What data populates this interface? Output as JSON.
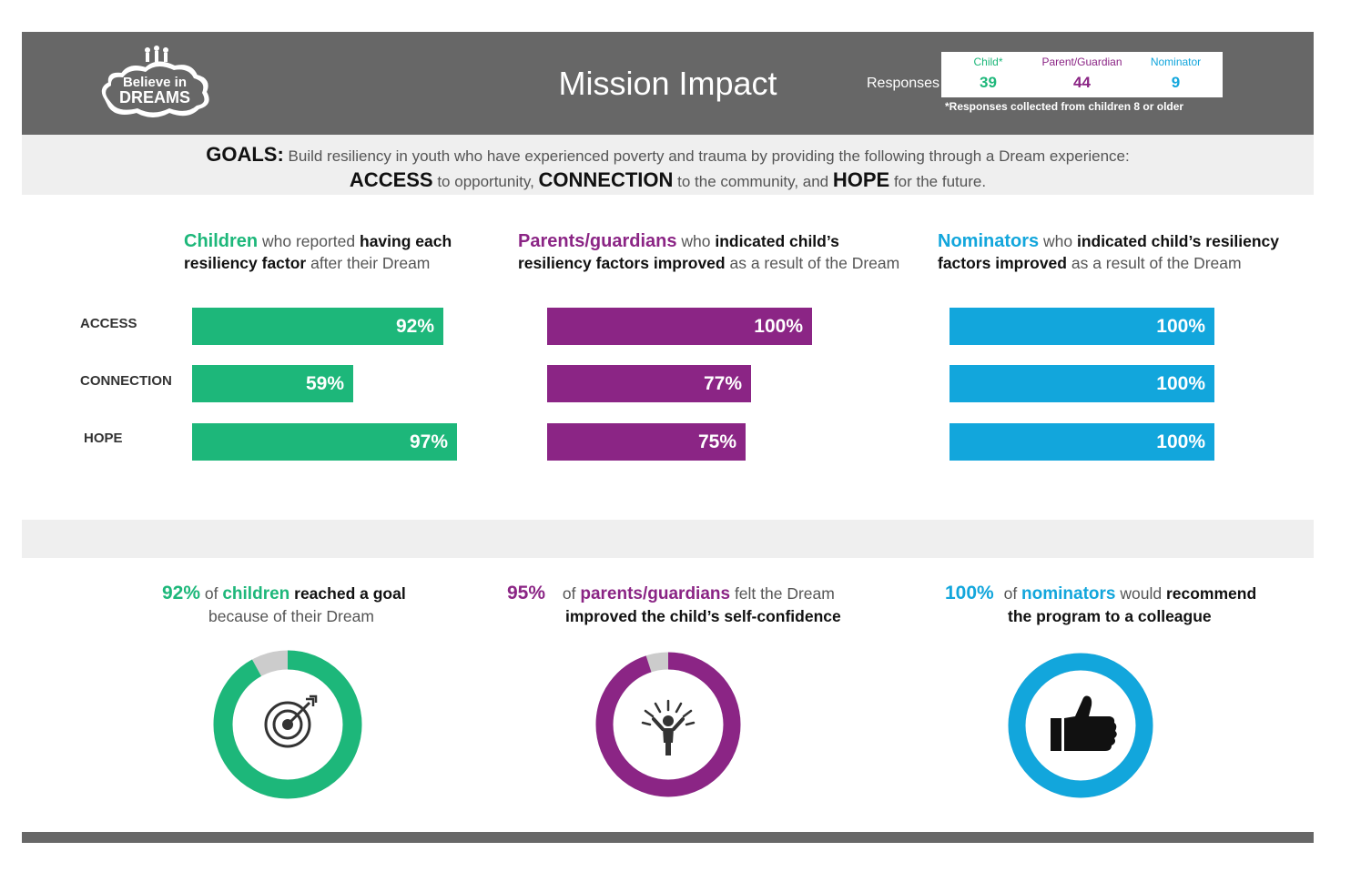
{
  "header": {
    "logo_text_top": "Believe in",
    "logo_text_bottom": "DREAMS",
    "title": "Mission Impact",
    "responses_label": "Responses",
    "responses": [
      {
        "label": "Child*",
        "value": "39",
        "color": "#1db77a"
      },
      {
        "label": "Parent/Guardian",
        "value": "44",
        "color": "#8b2585"
      },
      {
        "label": "Nominator",
        "value": "9",
        "color": "#12a6dc"
      }
    ],
    "note": "*Responses collected from children 8 or older"
  },
  "goals": {
    "prefix": "GOALS:",
    "line1": " Build resiliency in youth who have experienced poverty and trauma by providing the following through a Dream experience:",
    "access": "ACCESS",
    "access_rest": " to opportunity, ",
    "connection": "CONNECTION",
    "connection_rest": " to the community, and ",
    "hope": "HOPE",
    "hope_rest": " for the future."
  },
  "columns": {
    "children": {
      "a": "Children",
      "b": " who reported ",
      "c": "having each",
      "d": "resiliency factor",
      "e": " after their Dream"
    },
    "parents": {
      "a": "Parents/guardians",
      "b": " who ",
      "c": "indicated child’s",
      "d": "resiliency factors improved",
      "e": " as a result of the Dream"
    },
    "nominators": {
      "a": "Nominators",
      "b": " who ",
      "c": "indicated child’s resiliency",
      "d": "factors improved",
      "e": " as a result of the Dream"
    }
  },
  "colors": {
    "green": "#1db77a",
    "purple": "#8b2585",
    "blue": "#12a6dc",
    "gray": "#676767",
    "light": "#efefef"
  },
  "chart_data": [
    {
      "type": "bar",
      "orientation": "horizontal",
      "categories": [
        "ACCESS",
        "CONNECTION",
        "HOPE"
      ],
      "series": [
        {
          "name": "Children",
          "values": [
            92,
            59,
            97
          ],
          "labels": [
            "92%",
            "59%",
            "97%"
          ]
        }
      ],
      "xlim": [
        0,
        100
      ],
      "grid": false
    },
    {
      "type": "bar",
      "orientation": "horizontal",
      "categories": [
        "ACCESS",
        "CONNECTION",
        "HOPE"
      ],
      "series": [
        {
          "name": "Parents/guardians",
          "values": [
            100,
            77,
            75
          ],
          "labels": [
            "100%",
            "77%",
            "75%"
          ]
        }
      ],
      "xlim": [
        0,
        100
      ],
      "grid": false
    },
    {
      "type": "bar",
      "orientation": "horizontal",
      "categories": [
        "ACCESS",
        "CONNECTION",
        "HOPE"
      ],
      "series": [
        {
          "name": "Nominators",
          "values": [
            100,
            100,
            100
          ],
          "labels": [
            "100%",
            "100%",
            "100%"
          ]
        }
      ],
      "xlim": [
        0,
        100
      ],
      "grid": false
    },
    {
      "type": "pie",
      "categories": [
        "reached a goal",
        "other"
      ],
      "values": [
        92,
        8
      ]
    },
    {
      "type": "pie",
      "categories": [
        "improved self-confidence",
        "other"
      ],
      "values": [
        95,
        5
      ]
    },
    {
      "type": "pie",
      "categories": [
        "would recommend",
        "other"
      ],
      "values": [
        100,
        0
      ]
    }
  ],
  "stats": [
    {
      "pct": "92%",
      "of": " of ",
      "who": "children",
      "rest1": "reached a goal",
      "line2": "because of their Dream",
      "icon": "target-icon"
    },
    {
      "pct": "95%",
      "of": " of ",
      "who": "parents/guardians",
      "rest1": " felt the Dream",
      "line2": "improved the child’s self-confidence",
      "icon": "person-arms-raised-icon"
    },
    {
      "pct": "100%",
      "of": " of ",
      "who": "nominators",
      "rest1": " would ",
      "rest2": "recommend",
      "line2": "the program to a colleague",
      "icon": "thumbs-up-icon"
    }
  ]
}
